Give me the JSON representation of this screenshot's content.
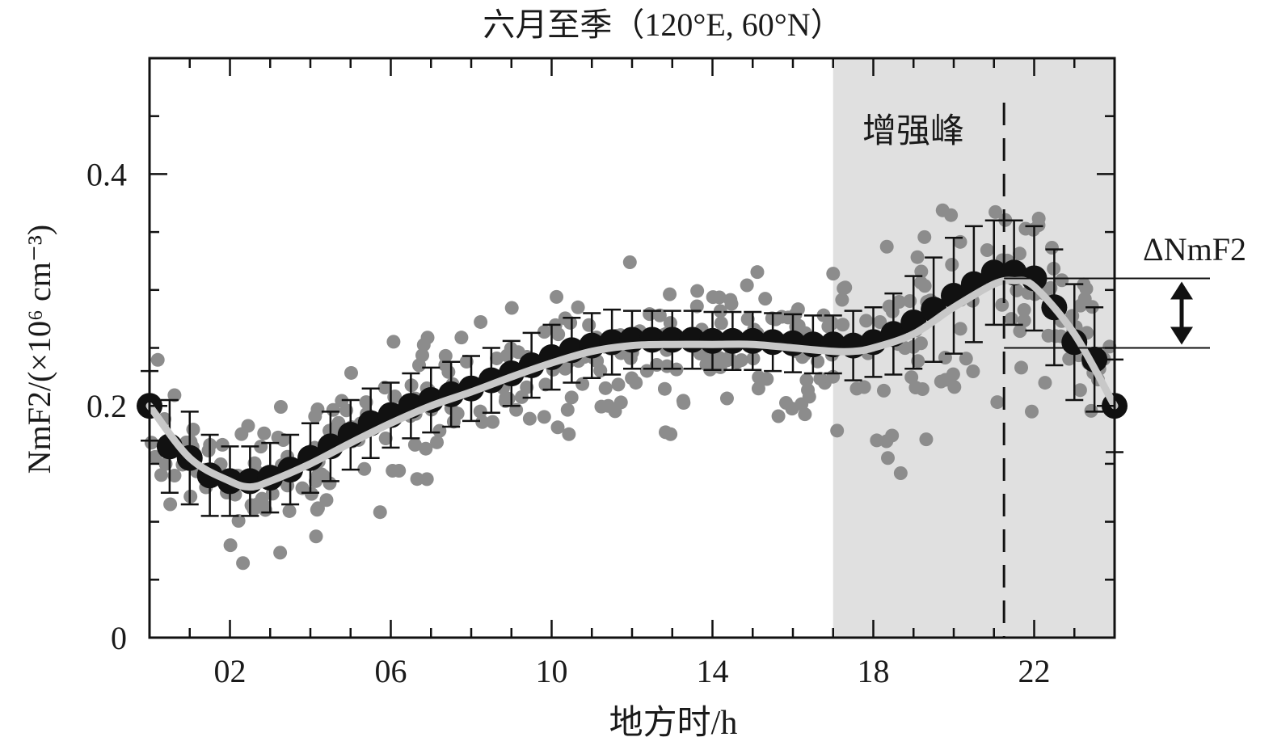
{
  "chart_data": {
    "type": "scatter",
    "title": "六月至季（120°E, 60°N）",
    "xlabel": "地方时/h",
    "ylabel": "NmF2/(×10⁶ cm⁻³)",
    "xlim": [
      0,
      24
    ],
    "ylim": [
      0,
      0.5
    ],
    "x_ticks": [
      2,
      6,
      10,
      14,
      18,
      22
    ],
    "x_tick_labels": [
      "02",
      "06",
      "10",
      "14",
      "18",
      "22"
    ],
    "y_ticks": [
      0,
      0.2,
      0.4
    ],
    "y_tick_labels": [
      "0",
      "0.2",
      "0.4"
    ],
    "grid": false,
    "shaded_region": {
      "label": "增强峰",
      "x_start": 17.0,
      "x_end": 24.0,
      "color": "#e0e0e0"
    },
    "peak_line_x": 21.25,
    "delta_annotation": {
      "label": "ΔNmF2",
      "y_high": 0.31,
      "y_low": 0.25
    },
    "colors": {
      "scatter": "#8c8c8c",
      "mean": "#111111",
      "fit": "#c8c8c8",
      "shade": "#e0e0e0"
    },
    "series": [
      {
        "kind": "mean_with_errorbars",
        "x": [
          0,
          0.5,
          1,
          1.5,
          2,
          2.5,
          3,
          3.5,
          4,
          4.5,
          5,
          5.5,
          6,
          6.5,
          7,
          7.5,
          8,
          8.5,
          9,
          9.5,
          10,
          10.5,
          11,
          11.5,
          12,
          12.5,
          13,
          13.5,
          14,
          14.5,
          15,
          15.5,
          16,
          16.5,
          17,
          17.5,
          18,
          18.5,
          19,
          19.5,
          20,
          20.5,
          21,
          21.5,
          22,
          22.5,
          23,
          23.5,
          24
        ],
        "y": [
          0.2,
          0.165,
          0.155,
          0.14,
          0.135,
          0.135,
          0.138,
          0.145,
          0.155,
          0.165,
          0.175,
          0.185,
          0.192,
          0.2,
          0.205,
          0.21,
          0.215,
          0.222,
          0.228,
          0.235,
          0.242,
          0.248,
          0.252,
          0.255,
          0.257,
          0.257,
          0.257,
          0.257,
          0.256,
          0.256,
          0.256,
          0.255,
          0.254,
          0.253,
          0.253,
          0.252,
          0.255,
          0.262,
          0.272,
          0.283,
          0.295,
          0.305,
          0.315,
          0.315,
          0.31,
          0.285,
          0.255,
          0.24,
          0.2
        ],
        "error": [
          0.03,
          0.04,
          0.04,
          0.035,
          0.03,
          0.03,
          0.03,
          0.03,
          0.03,
          0.03,
          0.03,
          0.03,
          0.028,
          0.028,
          0.028,
          0.028,
          0.028,
          0.028,
          0.028,
          0.028,
          0.028,
          0.028,
          0.028,
          0.028,
          0.025,
          0.025,
          0.025,
          0.025,
          0.025,
          0.025,
          0.025,
          0.025,
          0.025,
          0.025,
          0.025,
          0.03,
          0.03,
          0.035,
          0.04,
          0.045,
          0.05,
          0.05,
          0.045,
          0.045,
          0.045,
          0.05,
          0.05,
          0.045,
          0.04
        ]
      },
      {
        "kind": "smoothed_fit",
        "x": [
          0,
          1,
          2,
          2.5,
          3,
          4,
          5,
          6,
          7,
          8,
          9,
          10,
          11,
          12,
          13,
          14,
          15,
          16,
          17,
          17.5,
          18,
          19,
          20,
          21,
          21.5,
          22,
          23,
          24
        ],
        "y": [
          0.2,
          0.155,
          0.135,
          0.13,
          0.135,
          0.15,
          0.168,
          0.185,
          0.2,
          0.212,
          0.225,
          0.237,
          0.247,
          0.252,
          0.253,
          0.253,
          0.253,
          0.25,
          0.247,
          0.247,
          0.25,
          0.262,
          0.285,
          0.305,
          0.308,
          0.303,
          0.262,
          0.2
        ]
      },
      {
        "kind": "scatter_points",
        "note_count": 400,
        "spread": 0.04
      }
    ]
  }
}
